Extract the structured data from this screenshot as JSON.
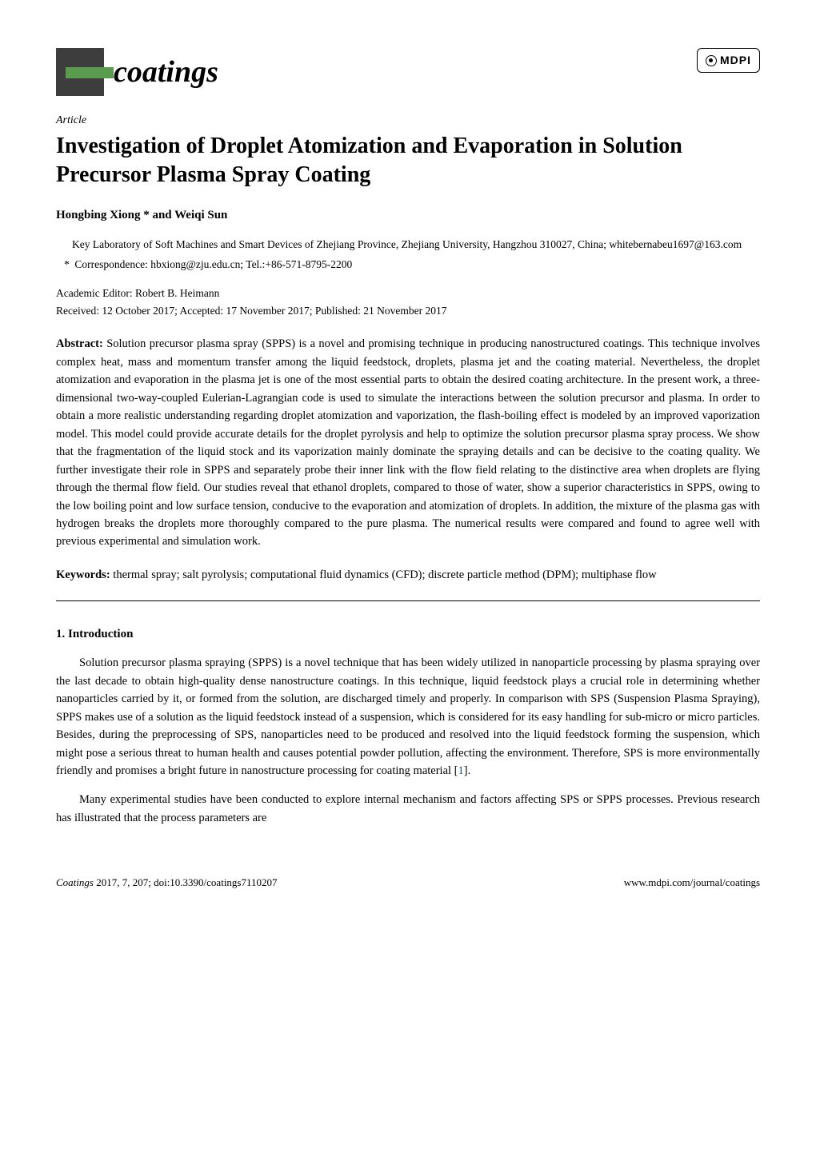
{
  "header": {
    "journal_name": "coatings",
    "publisher_logo": "MDPI"
  },
  "article_type": "Article",
  "title": "Investigation of Droplet Atomization and Evaporation in Solution Precursor Plasma Spray Coating",
  "authors": "Hongbing Xiong * and Weiqi Sun",
  "affiliation": {
    "text": "Key Laboratory of Soft Machines and Smart Devices of Zhejiang Province, Zhejiang University, Hangzhou 310027, China; whitebernabeu1697@163.com"
  },
  "correspondence": {
    "marker": "*",
    "text": "Correspondence: hbxiong@zju.edu.cn; Tel.:+86-571-8795-2200"
  },
  "editor": "Academic Editor: Robert B. Heimann",
  "dates": "Received: 12 October 2017; Accepted: 17 November 2017; Published: 21 November 2017",
  "abstract": {
    "label": "Abstract:",
    "text": "Solution precursor plasma spray (SPPS) is a novel and promising technique in producing nanostructured coatings. This technique involves complex heat, mass and momentum transfer among the liquid feedstock, droplets, plasma jet and the coating material. Nevertheless, the droplet atomization and evaporation in the plasma jet is one of the most essential parts to obtain the desired coating architecture. In the present work, a three-dimensional two-way-coupled Eulerian-Lagrangian code is used to simulate the interactions between the solution precursor and plasma. In order to obtain a more realistic understanding regarding droplet atomization and vaporization, the flash-boiling effect is modeled by an improved vaporization model. This model could provide accurate details for the droplet pyrolysis and help to optimize the solution precursor plasma spray process. We show that the fragmentation of the liquid stock and its vaporization mainly dominate the spraying details and can be decisive to the coating quality. We further investigate their role in SPPS and separately probe their inner link with the flow field relating to the distinctive area when droplets are flying through the thermal flow field. Our studies reveal that ethanol droplets, compared to those of water, show a superior characteristics in SPPS, owing to the low boiling point and low surface tension, conducive to the evaporation and atomization of droplets. In addition, the mixture of the plasma gas with hydrogen breaks the droplets more thoroughly compared to the pure plasma. The numerical results were compared and found to agree well with previous experimental and simulation work."
  },
  "keywords": {
    "label": "Keywords:",
    "text": "thermal spray; salt pyrolysis; computational fluid dynamics (CFD); discrete particle method (DPM); multiphase flow"
  },
  "section1": {
    "heading": "1. Introduction",
    "para1_a": "Solution precursor plasma spraying (SPPS) is a novel technique that has been widely utilized in nanoparticle processing by plasma spraying over the last decade to obtain high-quality dense nanostructure coatings. In this technique, liquid feedstock plays a crucial role in determining whether nanoparticles carried by it, or formed from the solution, are discharged timely and properly. In comparison with SPS (Suspension Plasma Spraying), SPPS makes use of a solution as the liquid feedstock instead of a suspension, which is considered for its easy handling for sub-micro or micro particles. Besides, during the preprocessing of SPS, nanoparticles need to be produced and resolved into the liquid feedstock forming the suspension, which might pose a serious threat to human health and causes potential powder pollution, affecting the environment. Therefore, SPS is more environmentally friendly and promises a bright future in nanostructure processing for coating material [",
    "para1_ref": "1",
    "para1_b": "].",
    "para2": "Many experimental studies have been conducted to explore internal mechanism and factors affecting SPS or SPPS processes. Previous research has illustrated that the process parameters are"
  },
  "footer": {
    "left_italic": "Coatings",
    "left_rest": " 2017, 7, 207; doi:10.3390/coatings7110207",
    "right": "www.mdpi.com/journal/coatings"
  },
  "colors": {
    "text": "#000000",
    "background": "#ffffff",
    "logo_dark": "#3d3d3d",
    "logo_green": "#5a9b4f",
    "ref_link": "#1a5490"
  }
}
